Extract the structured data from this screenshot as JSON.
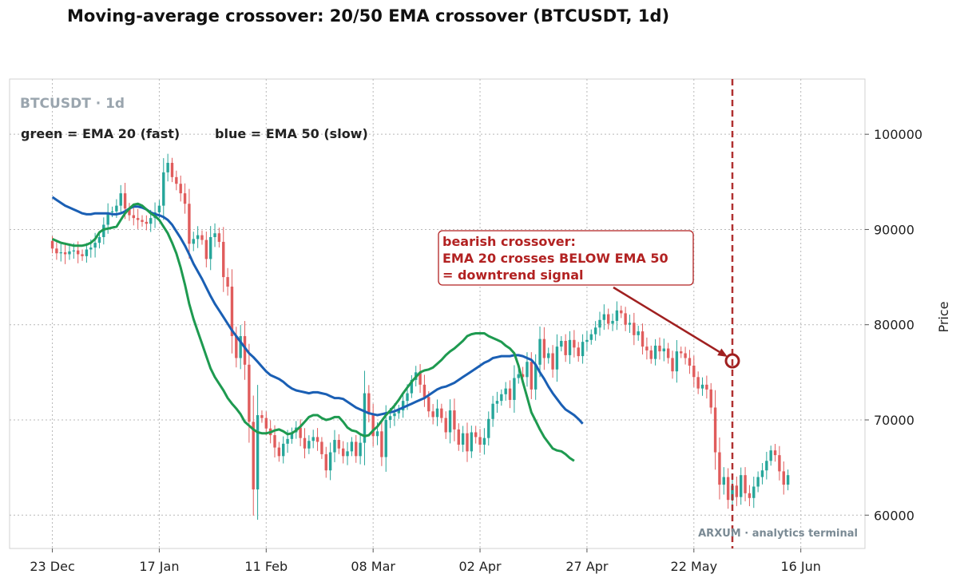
{
  "chart_data": {
    "type": "candlestick",
    "title": "Moving-average crossover: 20/50 EMA crossover (BTCUSDT, 1d)",
    "symbol_label": "BTCUSDT · 1d",
    "legend_fast": "green = EMA 20 (fast)",
    "legend_slow": "blue = EMA 50 (slow)",
    "ylabel": "Price",
    "ylim": [
      56500,
      105800
    ],
    "y_ticks": [
      60000,
      70000,
      80000,
      90000,
      100000
    ],
    "x_ticks": [
      {
        "day": 0,
        "label": "23 Dec"
      },
      {
        "day": 25,
        "label": "17 Jan"
      },
      {
        "day": 50,
        "label": "11 Feb"
      },
      {
        "day": 75,
        "label": "08 Mar"
      },
      {
        "day": 100,
        "label": "02 Apr"
      },
      {
        "day": 125,
        "label": "27 Apr"
      },
      {
        "day": 150,
        "label": "22 May"
      },
      {
        "day": 175,
        "label": "16 Jun"
      }
    ],
    "xlim": [
      -10,
      190
    ],
    "grid": true,
    "colors": {
      "up": "#26a69a",
      "down": "#e05c5c",
      "ema_fast": "#1e9a50",
      "ema_slow": "#1a5fb4",
      "annotation": "#b22222"
    },
    "closes": [
      88000,
      87500,
      87600,
      87400,
      87700,
      87800,
      87400,
      87200,
      87900,
      88100,
      88600,
      89200,
      90500,
      91800,
      91900,
      92500,
      93800,
      92200,
      91500,
      91200,
      91000,
      90800,
      90600,
      91200,
      91800,
      92500,
      96000,
      97000,
      95500,
      94800,
      93800,
      92700,
      88500,
      89000,
      89400,
      88900,
      86900,
      89200,
      89600,
      88700,
      85000,
      84000,
      78800,
      76500,
      78800,
      75800,
      69800,
      62700,
      70500,
      70200,
      69100,
      68400,
      67100,
      66200,
      67500,
      68000,
      68700,
      69200,
      68100,
      67000,
      67800,
      68200,
      67700,
      66400,
      64700,
      66600,
      67900,
      67000,
      66200,
      66700,
      67700,
      66200,
      67600,
      72800,
      70600,
      68300,
      68800,
      66100,
      70000,
      70400,
      70700,
      71000,
      72000,
      72800,
      74200,
      75000,
      73700,
      72400,
      70900,
      70300,
      71200,
      70200,
      68700,
      71000,
      69000,
      67400,
      68600,
      66700,
      68700,
      68200,
      67400,
      68100,
      70100,
      71700,
      72000,
      72700,
      73300,
      72100,
      74400,
      74800,
      74500,
      76100,
      73200,
      75800,
      78500,
      76500,
      77000,
      75300,
      77700,
      78300,
      76800,
      78400,
      77600,
      76700,
      78200,
      78400,
      79000,
      79700,
      80500,
      81100,
      80100,
      80400,
      81500,
      81200,
      80000,
      80200,
      78900,
      79300,
      77700,
      77300,
      76400,
      77800,
      77200,
      77500,
      76500,
      75100,
      77200,
      77000,
      76500,
      75700,
      74500,
      73300,
      73700,
      73200,
      71300,
      66600,
      63200,
      64000,
      61600,
      63100,
      61900,
      64200,
      62300,
      61800,
      63000,
      64000,
      64700,
      65700,
      66800,
      66300,
      64600,
      63200,
      64200
    ],
    "ema20": [
      89000,
      88800,
      88600,
      88500,
      88400,
      88300,
      88300,
      88300,
      88400,
      88600,
      89000,
      89700,
      90000,
      90100,
      90200,
      90300,
      91000,
      91700,
      92200,
      92600,
      92700,
      92500,
      92100,
      91700,
      91400,
      91000,
      90300,
      89600,
      88600,
      87500,
      86000,
      84200,
      82200,
      80600,
      79300,
      78000,
      76700,
      75400,
      74500,
      73800,
      73100,
      72300,
      71700,
      71200,
      70600,
      69800,
      69400,
      69000,
      68700,
      68600,
      68600,
      68700,
      68900,
      69000,
      68800,
      68500,
      68600,
      68900,
      69300,
      69800,
      70300,
      70500,
      70500,
      70200,
      70000,
      70100,
      70300,
      70300,
      69800,
      69200,
      68900,
      68800,
      68500,
      68300,
      68400,
      68900,
      69300,
      69900,
      70500,
      71000,
      71500,
      72100,
      72800,
      73400,
      74000,
      74500,
      75000,
      75200,
      75300,
      75500,
      75900,
      76300,
      76800,
      77200,
      77500,
      77900,
      78300,
      78800,
      79000,
      79100,
      79100,
      79100,
      78800,
      78600,
      78400,
      78200,
      77800,
      77500,
      77000,
      75700,
      74000,
      72400,
      70800,
      69900,
      69000,
      68200,
      67600,
      67000,
      66800,
      66700,
      66400,
      66000,
      65700
    ],
    "ema20_x0": 0,
    "ema50": [
      93400,
      93100,
      92800,
      92500,
      92300,
      92100,
      91900,
      91700,
      91600,
      91600,
      91700,
      91700,
      91700,
      91700,
      91600,
      91600,
      91700,
      91900,
      92200,
      92400,
      92400,
      92300,
      92100,
      91800,
      91600,
      91500,
      91300,
      91000,
      90500,
      89800,
      89100,
      88300,
      87400,
      86400,
      85600,
      84800,
      83900,
      83000,
      82200,
      81500,
      80800,
      80100,
      79400,
      78800,
      78200,
      77600,
      77000,
      76600,
      76100,
      75600,
      75100,
      74700,
      74500,
      74300,
      74000,
      73600,
      73300,
      73100,
      73000,
      72900,
      72800,
      72900,
      72900,
      72800,
      72700,
      72500,
      72300,
      72300,
      72200,
      71900,
      71600,
      71300,
      71100,
      70900,
      70700,
      70600,
      70500,
      70600,
      70700,
      70800,
      70900,
      71100,
      71300,
      71500,
      71700,
      71900,
      72100,
      72300,
      72600,
      72900,
      73200,
      73400,
      73500,
      73700,
      73900,
      74200,
      74500,
      74800,
      75100,
      75400,
      75700,
      76000,
      76200,
      76500,
      76600,
      76700,
      76700,
      76700,
      76800,
      76800,
      76700,
      76500,
      76300,
      75800,
      75000,
      74300,
      73500,
      72800,
      72200,
      71600,
      71100,
      70800,
      70500,
      70100,
      69600
    ],
    "ema50_x0": 0,
    "crossover": {
      "day": 159,
      "price": 76200
    },
    "annotation": {
      "line1": "bearish crossover:",
      "line2": "EMA 20 crosses BELOW EMA 50",
      "line3": "= downtrend signal"
    },
    "brand": "ARXUM · analytics terminal"
  }
}
